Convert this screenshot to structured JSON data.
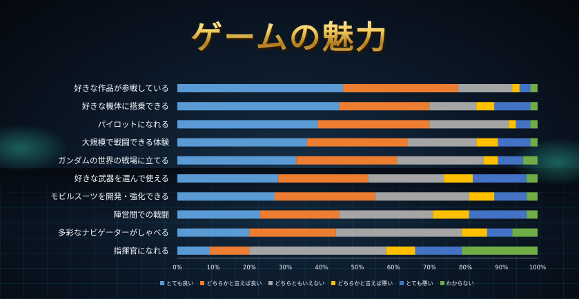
{
  "page_title": "ゲームの魅力",
  "chart_data": {
    "type": "bar",
    "orientation": "horizontal",
    "stacked": true,
    "percent": true,
    "categories": [
      "好きな作品が参戦している",
      "好きな機体に搭乗できる",
      "パイロットになれる",
      "大規模で戦闘できる体験",
      "ガンダムの世界の戦場に立てる",
      "好きな武器を選んで使える",
      "モビルスーツを開発・強化できる",
      "陣営間での戦闘",
      "多彩なナビゲーターがしゃべる",
      "指揮官になれる"
    ],
    "series": [
      {
        "name": "とても良い",
        "color": "#5b9bd5",
        "values": [
          46,
          45,
          39,
          36,
          33,
          28,
          27,
          23,
          20,
          9
        ]
      },
      {
        "name": "どちらかと言えば良い",
        "color": "#ed7d31",
        "values": [
          32,
          25,
          31,
          28,
          28,
          25,
          28,
          22,
          24,
          11
        ]
      },
      {
        "name": "どちらともいえない",
        "color": "#a5a5a5",
        "values": [
          15,
          13,
          22,
          19,
          24,
          21,
          26,
          26,
          35,
          38
        ]
      },
      {
        "name": "どちらかと言えば悪い",
        "color": "#ffc000",
        "values": [
          2,
          5,
          2,
          6,
          4,
          8,
          7,
          10,
          7,
          8
        ]
      },
      {
        "name": "とても悪い",
        "color": "#4472c4",
        "values": [
          3,
          10,
          4,
          9,
          7,
          15,
          9,
          16,
          7,
          13
        ]
      },
      {
        "name": "わからない",
        "color": "#70ad47",
        "values": [
          2,
          2,
          2,
          2,
          4,
          3,
          3,
          3,
          7,
          21
        ]
      }
    ],
    "xlim": [
      0,
      100
    ],
    "x_ticks": [
      "0%",
      "10%",
      "20%",
      "30%",
      "40%",
      "50%",
      "60%",
      "70%",
      "80%",
      "90%",
      "100%"
    ],
    "grid": false,
    "legend_position": "bottom"
  }
}
